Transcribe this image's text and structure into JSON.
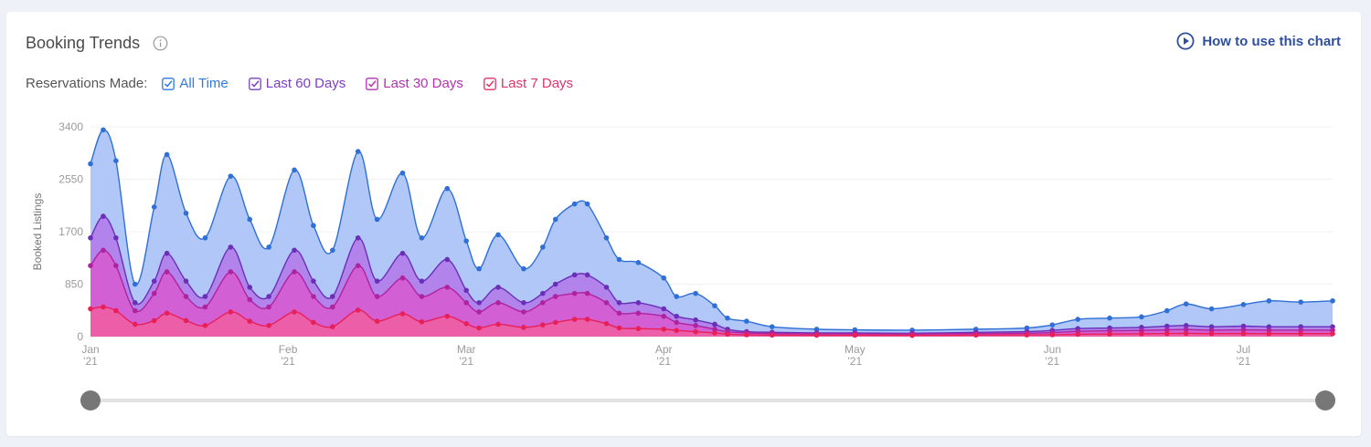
{
  "header": {
    "title": "Booking Trends",
    "how_to": "How to use this chart"
  },
  "filters": {
    "label": "Reservations Made:",
    "items": [
      {
        "name": "all-time",
        "label": "All Time",
        "color": "#2f7ae0",
        "checked": true
      },
      {
        "name": "last-60-days",
        "label": "Last 60 Days",
        "color": "#7a3fc2",
        "checked": true
      },
      {
        "name": "last-30-days",
        "label": "Last 30 Days",
        "color": "#b431b0",
        "checked": true
      },
      {
        "name": "last-7-days",
        "label": "Last 7 Days",
        "color": "#e0336a",
        "checked": true
      }
    ]
  },
  "chart_data": {
    "type": "area",
    "ylabel": "Booked Listings",
    "y_ticks": [
      "0",
      "850",
      "1700",
      "2550",
      "3400"
    ],
    "ylim": [
      0,
      3400
    ],
    "xlim": [
      "2021-01-01",
      "2021-07-15"
    ],
    "x_ticks": [
      {
        "date": "2021-01-01",
        "month": "Jan",
        "year": "'21"
      },
      {
        "date": "2021-02-01",
        "month": "Feb",
        "year": "'21"
      },
      {
        "date": "2021-03-01",
        "month": "Mar",
        "year": "'21"
      },
      {
        "date": "2021-04-01",
        "month": "Apr",
        "year": "'21"
      },
      {
        "date": "2021-05-01",
        "month": "May",
        "year": "'21"
      },
      {
        "date": "2021-06-01",
        "month": "Jun",
        "year": "'21"
      },
      {
        "date": "2021-07-01",
        "month": "Jul",
        "year": "'21"
      }
    ],
    "grid": true,
    "series": [
      {
        "name": "All Time",
        "color": "#2f6fd6",
        "fill": "#a5bff7",
        "points": [
          [
            "2021-01-01",
            2800
          ],
          [
            "2021-01-03",
            3350
          ],
          [
            "2021-01-05",
            2850
          ],
          [
            "2021-01-08",
            850
          ],
          [
            "2021-01-11",
            2100
          ],
          [
            "2021-01-13",
            2950
          ],
          [
            "2021-01-16",
            2000
          ],
          [
            "2021-01-19",
            1600
          ],
          [
            "2021-01-23",
            2600
          ],
          [
            "2021-01-26",
            1900
          ],
          [
            "2021-01-29",
            1450
          ],
          [
            "2021-02-02",
            2700
          ],
          [
            "2021-02-05",
            1800
          ],
          [
            "2021-02-08",
            1400
          ],
          [
            "2021-02-12",
            3000
          ],
          [
            "2021-02-15",
            1900
          ],
          [
            "2021-02-19",
            2650
          ],
          [
            "2021-02-22",
            1600
          ],
          [
            "2021-02-26",
            2400
          ],
          [
            "2021-03-01",
            1550
          ],
          [
            "2021-03-03",
            1100
          ],
          [
            "2021-03-06",
            1650
          ],
          [
            "2021-03-10",
            1100
          ],
          [
            "2021-03-13",
            1450
          ],
          [
            "2021-03-15",
            1900
          ],
          [
            "2021-03-18",
            2150
          ],
          [
            "2021-03-20",
            2150
          ],
          [
            "2021-03-23",
            1600
          ],
          [
            "2021-03-25",
            1250
          ],
          [
            "2021-03-28",
            1200
          ],
          [
            "2021-04-01",
            950
          ],
          [
            "2021-04-03",
            650
          ],
          [
            "2021-04-06",
            700
          ],
          [
            "2021-04-09",
            500
          ],
          [
            "2021-04-11",
            300
          ],
          [
            "2021-04-14",
            250
          ],
          [
            "2021-04-18",
            160
          ],
          [
            "2021-04-25",
            120
          ],
          [
            "2021-05-01",
            110
          ],
          [
            "2021-05-10",
            105
          ],
          [
            "2021-05-20",
            120
          ],
          [
            "2021-05-28",
            140
          ],
          [
            "2021-06-01",
            190
          ],
          [
            "2021-06-05",
            280
          ],
          [
            "2021-06-10",
            300
          ],
          [
            "2021-06-15",
            320
          ],
          [
            "2021-06-19",
            420
          ],
          [
            "2021-06-22",
            530
          ],
          [
            "2021-06-26",
            450
          ],
          [
            "2021-07-01",
            520
          ],
          [
            "2021-07-05",
            580
          ],
          [
            "2021-07-10",
            560
          ],
          [
            "2021-07-15",
            580
          ]
        ]
      },
      {
        "name": "Last 60 Days",
        "color": "#6a2fb8",
        "fill": "#b07ae8",
        "points": [
          [
            "2021-01-01",
            1600
          ],
          [
            "2021-01-03",
            1950
          ],
          [
            "2021-01-05",
            1600
          ],
          [
            "2021-01-08",
            550
          ],
          [
            "2021-01-11",
            900
          ],
          [
            "2021-01-13",
            1350
          ],
          [
            "2021-01-16",
            900
          ],
          [
            "2021-01-19",
            650
          ],
          [
            "2021-01-23",
            1450
          ],
          [
            "2021-01-26",
            800
          ],
          [
            "2021-01-29",
            650
          ],
          [
            "2021-02-02",
            1400
          ],
          [
            "2021-02-05",
            900
          ],
          [
            "2021-02-08",
            650
          ],
          [
            "2021-02-12",
            1600
          ],
          [
            "2021-02-15",
            900
          ],
          [
            "2021-02-19",
            1350
          ],
          [
            "2021-02-22",
            900
          ],
          [
            "2021-02-26",
            1250
          ],
          [
            "2021-03-01",
            750
          ],
          [
            "2021-03-03",
            550
          ],
          [
            "2021-03-06",
            800
          ],
          [
            "2021-03-10",
            550
          ],
          [
            "2021-03-13",
            700
          ],
          [
            "2021-03-15",
            850
          ],
          [
            "2021-03-18",
            1000
          ],
          [
            "2021-03-20",
            1000
          ],
          [
            "2021-03-23",
            800
          ],
          [
            "2021-03-25",
            550
          ],
          [
            "2021-03-28",
            550
          ],
          [
            "2021-04-01",
            450
          ],
          [
            "2021-04-03",
            330
          ],
          [
            "2021-04-06",
            270
          ],
          [
            "2021-04-09",
            200
          ],
          [
            "2021-04-11",
            120
          ],
          [
            "2021-04-14",
            80
          ],
          [
            "2021-04-18",
            70
          ],
          [
            "2021-04-25",
            60
          ],
          [
            "2021-05-01",
            60
          ],
          [
            "2021-05-10",
            55
          ],
          [
            "2021-05-20",
            70
          ],
          [
            "2021-05-28",
            80
          ],
          [
            "2021-06-01",
            100
          ],
          [
            "2021-06-05",
            130
          ],
          [
            "2021-06-10",
            140
          ],
          [
            "2021-06-15",
            150
          ],
          [
            "2021-06-19",
            170
          ],
          [
            "2021-06-22",
            180
          ],
          [
            "2021-06-26",
            160
          ],
          [
            "2021-07-01",
            170
          ],
          [
            "2021-07-05",
            160
          ],
          [
            "2021-07-10",
            160
          ],
          [
            "2021-07-15",
            160
          ]
        ]
      },
      {
        "name": "Last 30 Days",
        "color": "#b0239e",
        "fill": "#d65ad0",
        "points": [
          [
            "2021-01-01",
            1150
          ],
          [
            "2021-01-03",
            1400
          ],
          [
            "2021-01-05",
            1150
          ],
          [
            "2021-01-08",
            420
          ],
          [
            "2021-01-11",
            700
          ],
          [
            "2021-01-13",
            1050
          ],
          [
            "2021-01-16",
            650
          ],
          [
            "2021-01-19",
            480
          ],
          [
            "2021-01-23",
            1050
          ],
          [
            "2021-01-26",
            600
          ],
          [
            "2021-01-29",
            480
          ],
          [
            "2021-02-02",
            1050
          ],
          [
            "2021-02-05",
            650
          ],
          [
            "2021-02-08",
            480
          ],
          [
            "2021-02-12",
            1150
          ],
          [
            "2021-02-15",
            650
          ],
          [
            "2021-02-19",
            950
          ],
          [
            "2021-02-22",
            650
          ],
          [
            "2021-02-26",
            800
          ],
          [
            "2021-03-01",
            550
          ],
          [
            "2021-03-03",
            400
          ],
          [
            "2021-03-06",
            550
          ],
          [
            "2021-03-10",
            400
          ],
          [
            "2021-03-13",
            550
          ],
          [
            "2021-03-15",
            650
          ],
          [
            "2021-03-18",
            700
          ],
          [
            "2021-03-20",
            700
          ],
          [
            "2021-03-23",
            550
          ],
          [
            "2021-03-25",
            380
          ],
          [
            "2021-03-28",
            380
          ],
          [
            "2021-04-01",
            330
          ],
          [
            "2021-04-03",
            230
          ],
          [
            "2021-04-06",
            180
          ],
          [
            "2021-04-09",
            120
          ],
          [
            "2021-04-11",
            80
          ],
          [
            "2021-04-14",
            60
          ],
          [
            "2021-04-18",
            50
          ],
          [
            "2021-04-25",
            45
          ],
          [
            "2021-05-01",
            45
          ],
          [
            "2021-05-10",
            42
          ],
          [
            "2021-05-20",
            50
          ],
          [
            "2021-05-28",
            55
          ],
          [
            "2021-06-01",
            65
          ],
          [
            "2021-06-05",
            85
          ],
          [
            "2021-06-10",
            95
          ],
          [
            "2021-06-15",
            100
          ],
          [
            "2021-06-19",
            110
          ],
          [
            "2021-06-22",
            115
          ],
          [
            "2021-06-26",
            105
          ],
          [
            "2021-07-01",
            110
          ],
          [
            "2021-07-05",
            105
          ],
          [
            "2021-07-10",
            105
          ],
          [
            "2021-07-15",
            105
          ]
        ]
      },
      {
        "name": "Last 7 Days",
        "color": "#e8205a",
        "fill": "#ef5fa0",
        "points": [
          [
            "2021-01-01",
            450
          ],
          [
            "2021-01-03",
            480
          ],
          [
            "2021-01-05",
            420
          ],
          [
            "2021-01-08",
            200
          ],
          [
            "2021-01-11",
            260
          ],
          [
            "2021-01-13",
            380
          ],
          [
            "2021-01-16",
            260
          ],
          [
            "2021-01-19",
            180
          ],
          [
            "2021-01-23",
            400
          ],
          [
            "2021-01-26",
            250
          ],
          [
            "2021-01-29",
            180
          ],
          [
            "2021-02-02",
            400
          ],
          [
            "2021-02-05",
            230
          ],
          [
            "2021-02-08",
            160
          ],
          [
            "2021-02-12",
            430
          ],
          [
            "2021-02-15",
            250
          ],
          [
            "2021-02-19",
            370
          ],
          [
            "2021-02-22",
            240
          ],
          [
            "2021-02-26",
            330
          ],
          [
            "2021-03-01",
            210
          ],
          [
            "2021-03-03",
            140
          ],
          [
            "2021-03-06",
            200
          ],
          [
            "2021-03-10",
            150
          ],
          [
            "2021-03-13",
            190
          ],
          [
            "2021-03-15",
            230
          ],
          [
            "2021-03-18",
            280
          ],
          [
            "2021-03-20",
            280
          ],
          [
            "2021-03-23",
            210
          ],
          [
            "2021-03-25",
            140
          ],
          [
            "2021-03-28",
            130
          ],
          [
            "2021-04-01",
            120
          ],
          [
            "2021-04-03",
            100
          ],
          [
            "2021-04-06",
            80
          ],
          [
            "2021-04-09",
            60
          ],
          [
            "2021-04-11",
            40
          ],
          [
            "2021-04-14",
            30
          ],
          [
            "2021-04-18",
            25
          ],
          [
            "2021-04-25",
            22
          ],
          [
            "2021-05-01",
            22
          ],
          [
            "2021-05-10",
            20
          ],
          [
            "2021-05-20",
            25
          ],
          [
            "2021-05-28",
            28
          ],
          [
            "2021-06-01",
            30
          ],
          [
            "2021-06-05",
            38
          ],
          [
            "2021-06-10",
            42
          ],
          [
            "2021-06-15",
            45
          ],
          [
            "2021-06-19",
            50
          ],
          [
            "2021-06-22",
            52
          ],
          [
            "2021-06-26",
            48
          ],
          [
            "2021-07-01",
            50
          ],
          [
            "2021-07-05",
            48
          ],
          [
            "2021-07-10",
            48
          ],
          [
            "2021-07-15",
            48
          ]
        ]
      }
    ]
  },
  "slider": {
    "range_start": "2021-01-01",
    "range_end": "2021-07-15"
  }
}
